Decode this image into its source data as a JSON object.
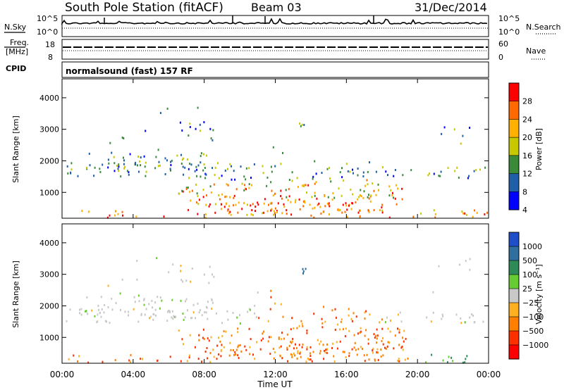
{
  "header": {
    "station": "South Pole Station (fitACF)",
    "beam": "Beam 03",
    "date": "31/Dec/2014"
  },
  "top_panel": {
    "nsky_label": "N.Sky",
    "left_ticks": [
      "10^5",
      "10^0"
    ],
    "right_ticks": [
      "10^5",
      "10^0"
    ],
    "nsearch_label": "N.Search"
  },
  "freq_panel": {
    "freq_label": "Freq.",
    "freq_unit": "[MHz]",
    "left_ticks": [
      "18",
      "8"
    ],
    "right_ticks": [
      "60",
      "0"
    ],
    "nave_label": "Nave",
    "cpid_label": "CPID"
  },
  "program": "normalsound (fast) 157 RF",
  "chart_data": [
    {
      "type": "heatmap",
      "title": "",
      "ylabel": "Slant Range [km]",
      "ylim": [
        180,
        4600
      ],
      "y_ticks": [
        1000,
        2000,
        3000,
        4000
      ],
      "y_tick_labels": [
        "1000",
        "2000",
        "3000",
        "4000"
      ],
      "colorbar": {
        "label": "Power [dB]",
        "tick_labels": [
          "28",
          "24",
          "20",
          "16",
          "12",
          "8",
          "4"
        ],
        "colors": [
          "#ff0000",
          "#ff6a00",
          "#ffb000",
          "#c8c800",
          "#3a8a3a",
          "#1f5fa8",
          "#0000ff"
        ]
      }
    },
    {
      "type": "heatmap",
      "title": "",
      "ylabel": "Slant Range [km]",
      "ylim": [
        180,
        4600
      ],
      "y_ticks": [
        1000,
        2000,
        3000,
        4000
      ],
      "y_tick_labels": [
        "1000",
        "2000",
        "3000",
        "4000"
      ],
      "colorbar": {
        "label": "Velocity [m s⁻¹]",
        "tick_labels": [
          "1000",
          "500",
          "100",
          "25",
          "−25",
          "−100",
          "−500",
          "−1000"
        ],
        "colors": [
          "#1f4fc8",
          "#2f6f9f",
          "#2e8b57",
          "#66cc33",
          "#c8c8c8",
          "#ffb020",
          "#ff8000",
          "#ff3000",
          "#ff0000"
        ]
      }
    }
  ],
  "x_axis": {
    "label": "Time UT",
    "tick_labels": [
      "00:00",
      "04:00",
      "08:00",
      "12:00",
      "16:00",
      "20:00",
      "00:00"
    ],
    "xlim_hours": [
      0,
      24
    ]
  }
}
